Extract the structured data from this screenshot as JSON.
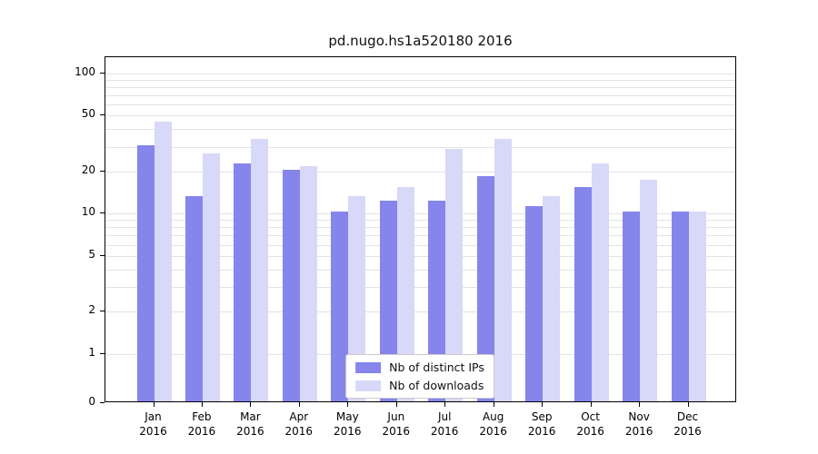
{
  "chart_data": {
    "type": "bar",
    "title": "pd.nugo.hs1a520180 2016",
    "categories": [
      "Jan",
      "Feb",
      "Mar",
      "Apr",
      "May",
      "Jun",
      "Jul",
      "Aug",
      "Sep",
      "Oct",
      "Nov",
      "Dec"
    ],
    "year_label": "2016",
    "series": [
      {
        "key": "ips",
        "name": "Nb of distinct IPs",
        "color": "#8585ec",
        "values": [
          30,
          13,
          22,
          20,
          10,
          12,
          12,
          18,
          11,
          15,
          10,
          10
        ]
      },
      {
        "key": "downloads",
        "name": "Nb of downloads",
        "color": "#d8d8f8",
        "values": [
          44,
          26,
          33,
          21,
          13,
          15,
          28,
          33,
          13,
          22,
          17,
          10
        ]
      }
    ],
    "yscale": "symlog",
    "yticks": [
      0,
      1,
      2,
      5,
      10,
      20,
      50,
      100
    ],
    "gridlines": [
      1,
      2,
      3,
      4,
      5,
      6,
      7,
      8,
      9,
      10,
      20,
      30,
      40,
      50,
      60,
      70,
      80,
      90,
      100
    ],
    "ylim_top": 130,
    "legend": {
      "position": "inside-bottom-center",
      "entries": [
        "Nb of distinct IPs",
        "Nb of downloads"
      ]
    },
    "colors": {
      "grid": "#e3e3e3",
      "axis": "#000000",
      "background": "#ffffff"
    }
  }
}
